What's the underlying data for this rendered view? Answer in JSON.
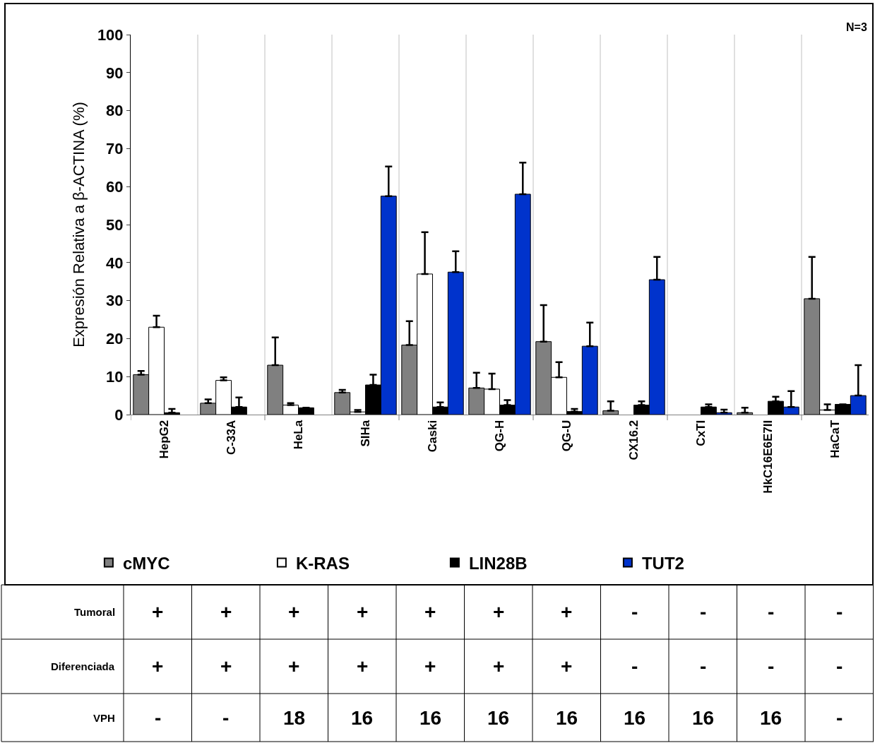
{
  "chart_data": {
    "type": "bar",
    "ylabel": "Expresión Relativa a β-ACTINA (%)",
    "categories": [
      "HepG2",
      "C-33A",
      "HeLa",
      "SIHa",
      "Caski",
      "QG-H",
      "QG-U",
      "CX16.2",
      "CxTI",
      "HkC16E6E7II",
      "HaCaT"
    ],
    "series": [
      {
        "name": "cMYC",
        "color": "#808080",
        "values": [
          10.5,
          3,
          13,
          5.8,
          18.3,
          7,
          19.2,
          1,
          null,
          0.5,
          30.5
        ],
        "errors": [
          [
            10.5,
            11.5
          ],
          [
            3,
            4
          ],
          [
            13,
            20.3
          ],
          [
            5.8,
            6.5
          ],
          [
            18.3,
            24.6
          ],
          [
            7,
            11
          ],
          [
            19.2,
            28.8
          ],
          [
            1,
            3.5
          ],
          null,
          [
            0.5,
            1.8
          ],
          [
            30.5,
            41.5
          ]
        ]
      },
      {
        "name": "K-RAS",
        "color": "#ffffff",
        "values": [
          23,
          9,
          2.5,
          0.7,
          37,
          6.7,
          9.8,
          null,
          null,
          null,
          1.2
        ],
        "errors": [
          [
            23,
            26
          ],
          [
            9,
            9.8
          ],
          [
            2.5,
            3
          ],
          [
            0.7,
            1.2
          ],
          [
            37,
            48
          ],
          [
            6.7,
            10.8
          ],
          [
            9.8,
            13.8
          ],
          null,
          null,
          null,
          [
            1.2,
            2.7
          ]
        ]
      },
      {
        "name": "LIN28B",
        "color": "#000000",
        "values": [
          0.5,
          2,
          1.8,
          7.8,
          2,
          2.5,
          0.8,
          2.5,
          2,
          3.5,
          2.7
        ],
        "errors": [
          [
            0.5,
            1.5
          ],
          [
            2,
            4.5
          ],
          null,
          [
            7.8,
            10.5
          ],
          [
            2,
            3.2
          ],
          [
            2.5,
            3.8
          ],
          [
            0.8,
            1.5
          ],
          [
            2.5,
            3.5
          ],
          [
            2,
            2.7
          ],
          [
            3.5,
            4.7
          ],
          null
        ]
      },
      {
        "name": "TUT2",
        "color": "#0033cc",
        "values": [
          null,
          null,
          null,
          57.5,
          37.5,
          58,
          18,
          35.5,
          0.5,
          2,
          5
        ],
        "errors": [
          null,
          null,
          null,
          [
            57.5,
            65.3
          ],
          [
            37.5,
            43
          ],
          [
            58,
            66.3
          ],
          [
            18,
            24.2
          ],
          [
            35.5,
            41.5
          ],
          [
            0.5,
            1.3
          ],
          [
            2,
            6.2
          ],
          [
            5,
            13
          ]
        ]
      }
    ],
    "ylim": [
      0,
      100
    ],
    "yticks": [
      0,
      10,
      20,
      30,
      40,
      50,
      60,
      70,
      80,
      90,
      100
    ],
    "grid": "x",
    "legend": "bottom",
    "annotations": [
      "N=3",
      "Tumoral",
      "+",
      "+",
      "+",
      "+",
      "+",
      "+",
      "+",
      "-",
      "-",
      "-",
      "-",
      "Diferenciada",
      "+",
      "+",
      "+",
      "+",
      "+",
      "+",
      "+",
      "-",
      "-",
      "-",
      "-",
      "VPH",
      "-",
      "-",
      "18",
      "16",
      "16",
      "16",
      "16",
      "16",
      "16",
      "16",
      "-"
    ]
  }
}
